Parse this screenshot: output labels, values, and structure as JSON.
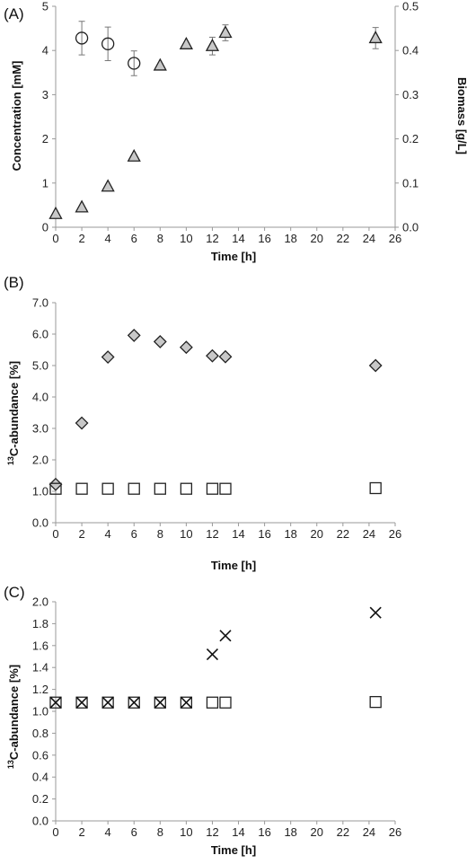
{
  "chart_data": [
    {
      "type": "scatter",
      "panel_label": "(A)",
      "xlabel": "Time [h]",
      "ylabel": "Concentration [mM]",
      "y2label": "Biomass [g/L]",
      "xlim": [
        0,
        26
      ],
      "xticks": [
        "0",
        "2",
        "4",
        "6",
        "8",
        "10",
        "12",
        "14",
        "16",
        "18",
        "20",
        "22",
        "24",
        "26"
      ],
      "ylim": [
        0,
        5
      ],
      "yticks": [
        "0",
        "1",
        "2",
        "3",
        "4",
        "5"
      ],
      "y2lim": [
        0,
        0.5
      ],
      "y2ticks": [
        "0.0",
        "0.1",
        "0.2",
        "0.3",
        "0.4",
        "0.5"
      ],
      "series": [
        {
          "marker": "circle",
          "axis": "left",
          "x": [
            2,
            4,
            6
          ],
          "y": [
            4.28,
            4.15,
            3.71
          ],
          "err": [
            0.38,
            0.38,
            0.28
          ]
        },
        {
          "marker": "triangle",
          "axis": "right",
          "x": [
            0,
            2,
            4,
            6,
            8,
            10,
            12,
            13,
            24.5
          ],
          "y": [
            0.03,
            0.045,
            0.092,
            0.16,
            0.366,
            0.414,
            0.41,
            0.44,
            0.428
          ],
          "err": [
            0,
            0,
            0,
            0,
            0,
            0,
            0.02,
            0.018,
            0.024
          ]
        }
      ]
    },
    {
      "type": "scatter",
      "panel_label": "(B)",
      "xlabel": "Time [h]",
      "ylabel_sup": "13",
      "ylabel": "C-abundance [%]",
      "xlim": [
        0,
        26
      ],
      "xticks": [
        "0",
        "2",
        "4",
        "6",
        "8",
        "10",
        "12",
        "14",
        "16",
        "18",
        "20",
        "22",
        "24",
        "26"
      ],
      "ylim": [
        0,
        7
      ],
      "yticks": [
        "0.0",
        "1.0",
        "2.0",
        "3.0",
        "4.0",
        "5.0",
        "6.0",
        "7.0"
      ],
      "series": [
        {
          "marker": "diamond",
          "x": [
            0,
            2,
            4,
            6,
            8,
            10,
            12,
            13,
            24.5
          ],
          "y": [
            1.22,
            3.17,
            5.27,
            5.96,
            5.76,
            5.58,
            5.31,
            5.28,
            5.0
          ]
        },
        {
          "marker": "square",
          "x": [
            0,
            2,
            4,
            6,
            8,
            10,
            12,
            13,
            24.5
          ],
          "y": [
            1.08,
            1.08,
            1.08,
            1.08,
            1.08,
            1.08,
            1.08,
            1.08,
            1.1
          ]
        }
      ]
    },
    {
      "type": "scatter",
      "panel_label": "(C)",
      "xlabel": "Time [h]",
      "ylabel_sup": "13",
      "ylabel": "C-abundance [%]",
      "xlim": [
        0,
        26
      ],
      "xticks": [
        "0",
        "2",
        "4",
        "6",
        "8",
        "10",
        "12",
        "14",
        "16",
        "18",
        "20",
        "22",
        "24",
        "26"
      ],
      "ylim": [
        0,
        2
      ],
      "yticks": [
        "0.0",
        "0.2",
        "0.4",
        "0.6",
        "0.8",
        "1.0",
        "1.2",
        "1.4",
        "1.6",
        "1.8",
        "2.0"
      ],
      "series": [
        {
          "marker": "square",
          "x": [
            0,
            2,
            4,
            6,
            8,
            10,
            12,
            13,
            24.5
          ],
          "y": [
            1.08,
            1.08,
            1.08,
            1.08,
            1.08,
            1.08,
            1.08,
            1.08,
            1.085
          ]
        },
        {
          "marker": "cross",
          "x": [
            0,
            2,
            4,
            6,
            8,
            10,
            12,
            13,
            24.5
          ],
          "y": [
            1.08,
            1.08,
            1.08,
            1.08,
            1.08,
            1.08,
            1.52,
            1.69,
            1.9
          ]
        }
      ]
    }
  ]
}
